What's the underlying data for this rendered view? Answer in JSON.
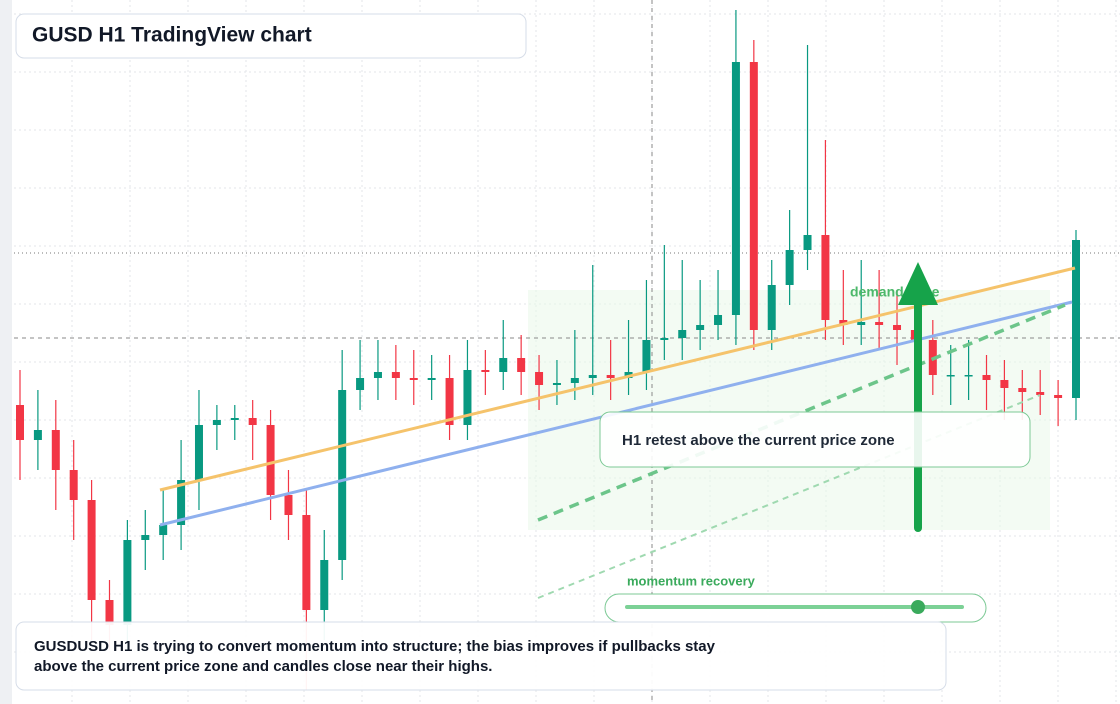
{
  "chart_data": {
    "type": "candlestick",
    "title": "GUSD H1 TradingView chart",
    "annotation": "demand zone",
    "callout": "H1 retest above the current price zone",
    "slider_label": "momentum recovery",
    "note": [
      "GUSDUSD H1 is trying to convert momentum into structure; the bias improves if pullbacks stay",
      "above the current price zone and candles close near their highs."
    ],
    "up_color": "#089981",
    "down_color": "#f23645",
    "ylim": [
      0,
      704
    ],
    "candles": [
      [
        299,
        334,
        224,
        264
      ],
      [
        264,
        314,
        234,
        274
      ],
      [
        274,
        304,
        194,
        234
      ],
      [
        234,
        264,
        164,
        204
      ],
      [
        204,
        224,
        64,
        104
      ],
      [
        104,
        124,
        54,
        79
      ],
      [
        79,
        184,
        54,
        164
      ],
      [
        164,
        194,
        134,
        169
      ],
      [
        169,
        214,
        144,
        179
      ],
      [
        179,
        264,
        154,
        224
      ],
      [
        224,
        314,
        194,
        279
      ],
      [
        279,
        299,
        254,
        284
      ],
      [
        284,
        299,
        264,
        286
      ],
      [
        286,
        304,
        244,
        279
      ],
      [
        279,
        294,
        184,
        209
      ],
      [
        209,
        234,
        164,
        189
      ],
      [
        189,
        214,
        14,
        94
      ],
      [
        94,
        174,
        64,
        144
      ],
      [
        144,
        354,
        124,
        314
      ],
      [
        314,
        364,
        294,
        326
      ],
      [
        326,
        364,
        304,
        332
      ],
      [
        332,
        359,
        304,
        326
      ],
      [
        326,
        354,
        299,
        324
      ],
      [
        324,
        349,
        304,
        326
      ],
      [
        326,
        349,
        264,
        279
      ],
      [
        279,
        364,
        264,
        334
      ],
      [
        334,
        354,
        309,
        332
      ],
      [
        332,
        384,
        314,
        346
      ],
      [
        346,
        369,
        309,
        332
      ],
      [
        332,
        349,
        294,
        319
      ],
      [
        319,
        344,
        299,
        321
      ],
      [
        321,
        374,
        304,
        326
      ],
      [
        326,
        439,
        309,
        329
      ],
      [
        329,
        364,
        304,
        326
      ],
      [
        326,
        384,
        309,
        332
      ],
      [
        332,
        424,
        314,
        364
      ],
      [
        364,
        459,
        344,
        366
      ],
      [
        366,
        444,
        344,
        374
      ],
      [
        374,
        424,
        354,
        379
      ],
      [
        379,
        434,
        364,
        389
      ],
      [
        389,
        694,
        359,
        642
      ],
      [
        642,
        664,
        354,
        374
      ],
      [
        374,
        444,
        354,
        419
      ],
      [
        419,
        494,
        399,
        454
      ],
      [
        454,
        659,
        434,
        469
      ],
      [
        469,
        564,
        364,
        384
      ],
      [
        384,
        434,
        359,
        379
      ],
      [
        379,
        444,
        359,
        382
      ],
      [
        382,
        434,
        354,
        379
      ],
      [
        379,
        414,
        339,
        374
      ],
      [
        374,
        404,
        344,
        364
      ],
      [
        364,
        384,
        309,
        329
      ],
      [
        329,
        359,
        299,
        329
      ],
      [
        329,
        364,
        304,
        329
      ],
      [
        329,
        349,
        294,
        324
      ],
      [
        324,
        344,
        284,
        316
      ],
      [
        316,
        334,
        284,
        312
      ],
      [
        312,
        334,
        289,
        309
      ],
      [
        309,
        324,
        278,
        306
      ],
      [
        306,
        474,
        284,
        464
      ]
    ]
  }
}
